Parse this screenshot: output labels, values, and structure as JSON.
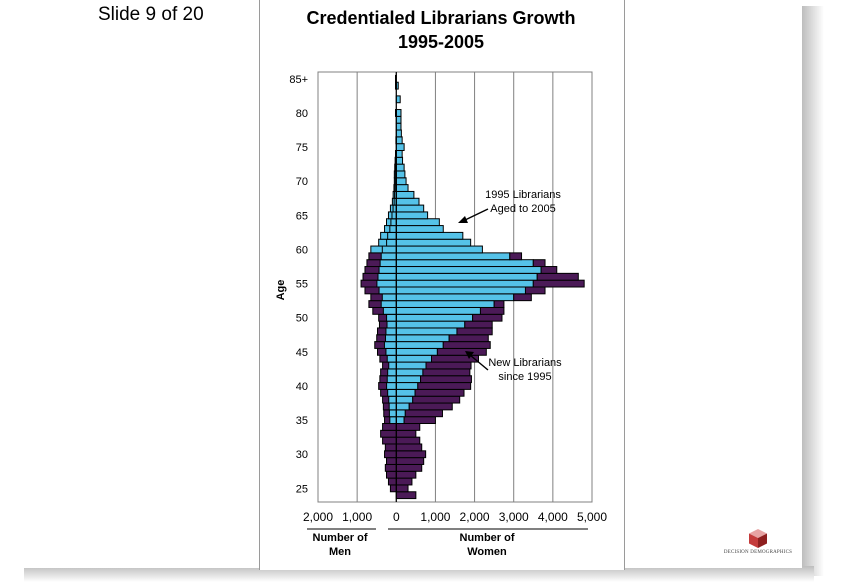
{
  "slide": {
    "counter": "Slide 9 of 20",
    "brand": "DECISION DEMOGRAPHICS"
  },
  "colors": {
    "librarians_1995": "#55c2e8",
    "new_librarians": "#4b1a57",
    "grid": "#808080",
    "outline": "#000000"
  },
  "chart_data": {
    "type": "bar",
    "orientation": "horizontal",
    "subtype": "population-pyramid",
    "title": "Credentialed Librarians Growth",
    "subtitle": "1995-2005",
    "ylabel": "Age",
    "x_tick_labels": [
      "2,000",
      "1,000",
      "0",
      "1,000",
      "2,000",
      "3,000",
      "4,000",
      "5,000"
    ],
    "x_ticks": [
      -2000,
      -1000,
      0,
      1000,
      2000,
      3000,
      4000,
      5000
    ],
    "xlim": [
      -2000,
      5000
    ],
    "ylim": [
      23,
      86
    ],
    "y_tick_labels": [
      "25",
      "30",
      "35",
      "40",
      "45",
      "50",
      "55",
      "60",
      "65",
      "70",
      "75",
      "80",
      "85+"
    ],
    "y_ticks": [
      25,
      30,
      35,
      40,
      45,
      50,
      55,
      60,
      65,
      70,
      75,
      80,
      85
    ],
    "axis_captions": {
      "men": [
        "Number of",
        "Men"
      ],
      "women": [
        "Number of",
        "Women"
      ]
    },
    "annotations": [
      {
        "lines": [
          "1995 Librarians",
          "Aged to 2005"
        ]
      },
      {
        "lines": [
          "New Librarians",
          "since 1995"
        ]
      }
    ],
    "ages": [
      24,
      25,
      26,
      27,
      28,
      29,
      30,
      31,
      32,
      33,
      34,
      35,
      36,
      37,
      38,
      39,
      40,
      41,
      42,
      43,
      44,
      45,
      46,
      47,
      48,
      49,
      50,
      51,
      52,
      53,
      54,
      55,
      56,
      57,
      58,
      59,
      60,
      61,
      62,
      63,
      64,
      65,
      66,
      67,
      68,
      69,
      70,
      71,
      72,
      73,
      74,
      75,
      76,
      77,
      78,
      79,
      80,
      81,
      82,
      83,
      84,
      85
    ],
    "series": [
      {
        "name": "1995 Librarians Aged to 2005",
        "side": "women",
        "values": [
          0,
          0,
          0,
          0,
          0,
          0,
          0,
          0,
          0,
          0,
          0,
          200,
          230,
          330,
          420,
          480,
          550,
          620,
          680,
          760,
          900,
          1050,
          1200,
          1350,
          1550,
          1750,
          1950,
          2150,
          2500,
          3000,
          3300,
          3500,
          3600,
          3700,
          3500,
          2900,
          2200,
          1900,
          1700,
          1200,
          1100,
          800,
          700,
          580,
          450,
          300,
          250,
          220,
          200,
          160,
          150,
          200,
          150,
          130,
          120,
          120,
          120,
          0,
          100,
          0,
          50,
          0
        ]
      },
      {
        "name": "New Librarians since 1995",
        "side": "women",
        "values": [
          500,
          300,
          400,
          500,
          650,
          700,
          750,
          650,
          600,
          500,
          600,
          800,
          950,
          1100,
          1200,
          1250,
          1350,
          1300,
          1200,
          1150,
          1200,
          1250,
          1200,
          1000,
          900,
          700,
          750,
          600,
          250,
          450,
          500,
          1300,
          1050,
          400,
          300,
          300,
          0,
          0,
          0,
          0,
          0,
          0,
          0,
          0,
          0,
          0,
          0,
          0,
          0,
          0,
          0,
          0,
          0,
          0,
          0,
          0,
          0,
          0,
          0,
          0,
          0,
          0
        ]
      },
      {
        "name": "Men",
        "side": "men",
        "values": [
          0,
          -150,
          -200,
          -250,
          -280,
          -250,
          -300,
          -280,
          -350,
          -400,
          -350,
          -300,
          -320,
          -330,
          -350,
          -400,
          -450,
          -420,
          -400,
          -350,
          -420,
          -480,
          -550,
          -500,
          -480,
          -430,
          -450,
          -600,
          -700,
          -650,
          -800,
          -900,
          -850,
          -800,
          -750,
          -700,
          -650,
          -450,
          -400,
          -300,
          -250,
          -200,
          -150,
          -100,
          -80,
          -60,
          -50,
          -50,
          -40,
          -30,
          -20,
          0,
          -10,
          0,
          0,
          0,
          -20,
          0,
          0,
          0,
          -20,
          -20
        ]
      }
    ]
  }
}
